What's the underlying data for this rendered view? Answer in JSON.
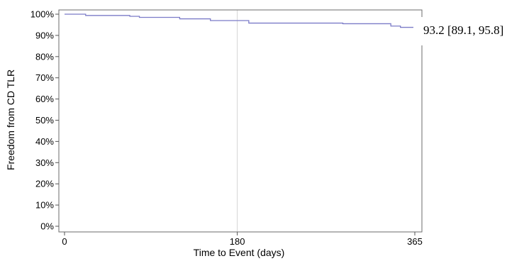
{
  "chart_data": {
    "type": "line",
    "title": "",
    "xlabel": "Time to Event (days)",
    "ylabel": "Freedom from CD TLR",
    "xlim": [
      0,
      365
    ],
    "ylim": [
      0,
      100
    ],
    "x_ticks": [
      0,
      180,
      365
    ],
    "x_tick_labels": [
      "0",
      "180",
      "365"
    ],
    "y_ticks": [
      0,
      10,
      20,
      30,
      40,
      50,
      60,
      70,
      80,
      90,
      100
    ],
    "y_tick_labels": [
      "0%",
      "10%",
      "20%",
      "30%",
      "40%",
      "50%",
      "60%",
      "70%",
      "80%",
      "90%",
      "100%"
    ],
    "reference_lines": [
      180
    ],
    "grid": false,
    "step": true,
    "line_color": "#7b7bc8",
    "series": [
      {
        "name": "",
        "x": [
          0,
          22,
          68,
          78,
          120,
          152,
          192,
          273,
          290,
          305,
          340,
          350,
          365
        ],
        "y": [
          100,
          99.4,
          99.0,
          98.5,
          97.8,
          97.0,
          95.8,
          95.8,
          95.5,
          95.5,
          94.4,
          93.8,
          93.2
        ]
      }
    ],
    "annotation": {
      "text": "93.2 [89.1, 95.8]",
      "x": 365,
      "y": 93.2
    }
  }
}
